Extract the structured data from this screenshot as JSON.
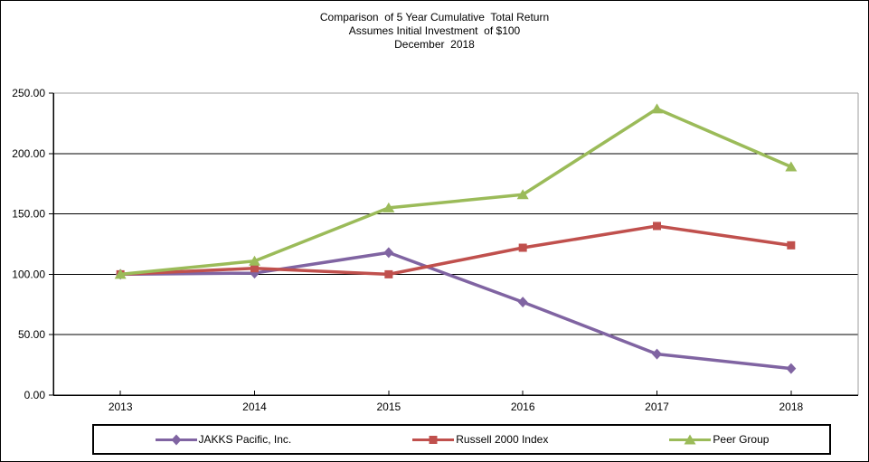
{
  "title": {
    "line1": "Comparison  of 5 Year Cumulative  Total Return",
    "line2": "Assumes Initial Investment  of $100",
    "line3": "December  2018"
  },
  "chart_data": {
    "type": "line",
    "categories": [
      "2013",
      "2014",
      "2015",
      "2016",
      "2017",
      "2018"
    ],
    "series": [
      {
        "name": "JAKKS Pacific, Inc.",
        "marker": "diamond",
        "color": "#8064A2",
        "values": [
          100,
          101,
          118,
          77,
          34,
          22
        ]
      },
      {
        "name": "Russell 2000 Index",
        "marker": "square",
        "color": "#C0504D",
        "values": [
          100,
          105,
          100,
          122,
          140,
          124
        ]
      },
      {
        "name": "Peer Group",
        "marker": "triangle",
        "color": "#9BBB59",
        "values": [
          100,
          111,
          155,
          166,
          237,
          189
        ]
      }
    ],
    "xlabel": "",
    "ylabel": "",
    "ylim": [
      0,
      250
    ],
    "y_ticks": [
      "0.00",
      "50.00",
      "100.00",
      "150.00",
      "200.00",
      "250.00"
    ],
    "grid": true,
    "gridline_color": "#000000",
    "plot_border_color": "#9e9e9e",
    "legend_position": "bottom"
  }
}
